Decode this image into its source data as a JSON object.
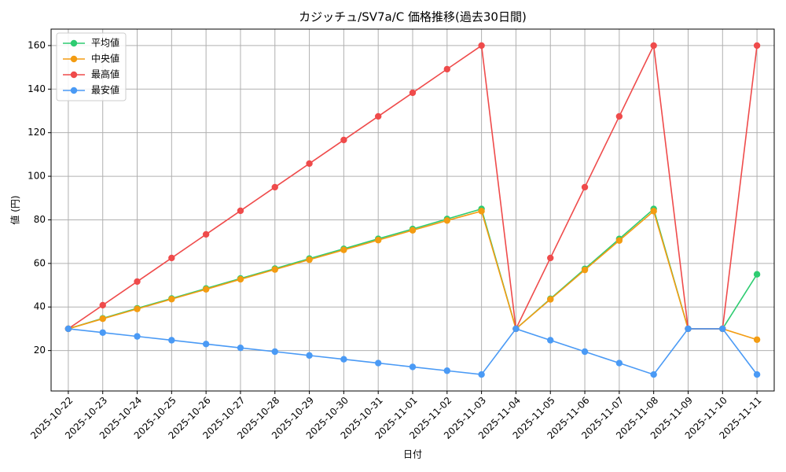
{
  "chart_data": {
    "type": "line",
    "title": "カジッチュ/SV7a/C 価格推移(過去30日間)",
    "x_label": "日付",
    "y_label": "値 (円)",
    "categories": [
      "2025-10-22",
      "2025-10-23",
      "2025-10-24",
      "2025-10-25",
      "2025-10-26",
      "2025-10-27",
      "2025-10-28",
      "2025-10-29",
      "2025-10-30",
      "2025-10-31",
      "2025-11-01",
      "2025-11-02",
      "2025-11-03",
      "2025-11-04",
      "2025-11-05",
      "2025-11-06",
      "2025-11-07",
      "2025-11-08",
      "2025-11-09",
      "2025-11-10",
      "2025-11-11"
    ],
    "series": [
      {
        "name": "平均値",
        "color": "#2ecc71",
        "values": [
          30,
          34.8,
          39.4,
          43.9,
          48.5,
          53.1,
          57.6,
          62.2,
          66.7,
          71.3,
          75.8,
          80.4,
          85,
          30,
          43.75,
          57.5,
          71.25,
          85,
          30,
          30,
          55
        ]
      },
      {
        "name": "中央値",
        "color": "#f39c12",
        "values": [
          30,
          34.6,
          39.1,
          43.6,
          48.1,
          52.7,
          57.2,
          61.7,
          66.2,
          70.7,
          75.2,
          79.7,
          84,
          30,
          43.5,
          57,
          70.5,
          84,
          30,
          30,
          25
        ]
      },
      {
        "name": "最高値",
        "color": "#ef4b4b",
        "values": [
          30,
          40.83,
          51.67,
          62.5,
          73.33,
          84.17,
          95,
          105.83,
          116.67,
          127.5,
          138.33,
          149.17,
          160,
          30,
          62.5,
          95,
          127.5,
          160,
          30,
          30,
          160
        ]
      },
      {
        "name": "最安値",
        "color": "#4a9af5",
        "values": [
          30,
          28.25,
          26.5,
          24.75,
          23,
          21.25,
          19.5,
          17.75,
          16,
          14.25,
          12.5,
          10.75,
          9,
          30,
          24.75,
          19.5,
          14.25,
          9,
          30,
          30,
          9
        ]
      }
    ],
    "ylim": [
      1.45,
      167.55
    ],
    "yticks": [
      20,
      40,
      60,
      80,
      100,
      120,
      140,
      160
    ],
    "grid": true,
    "legend": "upper left"
  }
}
